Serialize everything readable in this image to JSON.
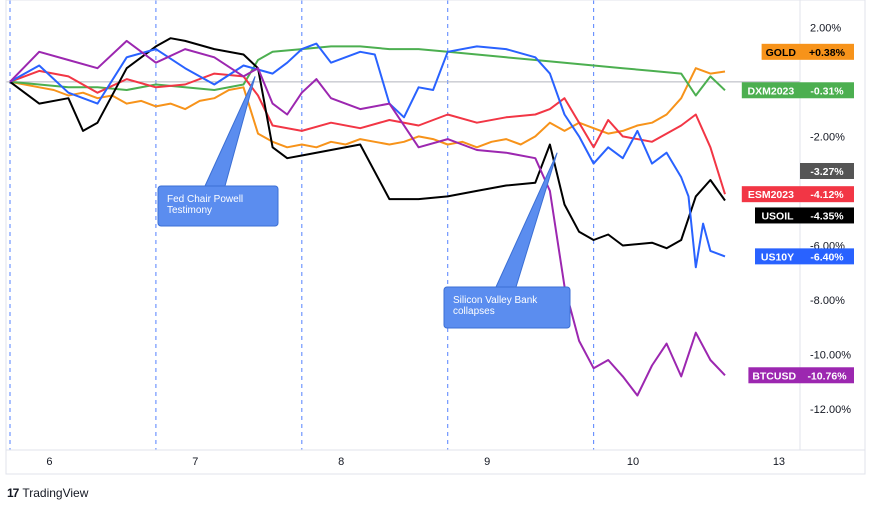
{
  "chart_data": {
    "type": "line",
    "title": "",
    "xlabel": "",
    "ylabel": "",
    "x_ticks": [
      "6",
      "7",
      "8",
      "9",
      "10",
      "13"
    ],
    "y_ticks": [
      "2.00%",
      "-2.00%",
      "-6.00%",
      "-8.00%",
      "-10.00%",
      "-12.00%"
    ],
    "ylim": [
      -13.5,
      3
    ],
    "xlim": [
      0,
      5.38
    ],
    "grid": "vertical dashed session separators",
    "series": [
      {
        "name": "GOLD",
        "label": "+0.38%",
        "color": "#f7931a",
        "x": [
          0,
          0.1,
          0.2,
          0.3,
          0.4,
          0.5,
          0.6,
          0.7,
          0.8,
          0.9,
          1.0,
          1.1,
          1.2,
          1.3,
          1.4,
          1.5,
          1.6,
          1.7,
          1.8,
          1.9,
          2.0,
          2.1,
          2.2,
          2.3,
          2.4,
          2.5,
          2.6,
          2.7,
          2.8,
          2.9,
          3.0,
          3.1,
          3.2,
          3.3,
          3.4,
          3.5,
          3.6,
          3.7,
          3.8,
          3.9,
          4.0,
          4.1,
          4.2,
          4.3,
          4.4,
          4.5,
          4.6,
          4.7,
          4.8,
          4.9
        ],
        "y": [
          0,
          -0.1,
          -0.2,
          -0.3,
          -0.5,
          -0.4,
          -0.6,
          -0.5,
          -0.8,
          -0.7,
          -0.9,
          -0.8,
          -1.0,
          -0.7,
          -0.6,
          -0.3,
          -0.2,
          -1.9,
          -2.2,
          -2.4,
          -2.3,
          -2.4,
          -2.2,
          -2.3,
          -2.1,
          -2.2,
          -2.3,
          -2.2,
          -2.0,
          -2.1,
          -2.3,
          -2.2,
          -2.4,
          -2.2,
          -2.1,
          -2.3,
          -2.0,
          -1.5,
          -1.8,
          -1.5,
          -1.7,
          -1.9,
          -1.8,
          -1.6,
          -1.5,
          -1.2,
          -0.6,
          0.5,
          0.3,
          0.38
        ]
      },
      {
        "name": "DXM2023",
        "label": "-0.31%",
        "color": "#4caf50",
        "x": [
          0,
          0.2,
          0.4,
          0.6,
          0.8,
          1.0,
          1.2,
          1.4,
          1.6,
          1.7,
          1.8,
          2.0,
          2.2,
          2.4,
          2.6,
          2.8,
          3.0,
          3.2,
          3.4,
          3.6,
          3.8,
          4.0,
          4.2,
          4.4,
          4.6,
          4.7,
          4.8,
          4.9
        ],
        "y": [
          0,
          -0.1,
          -0.2,
          -0.2,
          -0.3,
          -0.1,
          -0.2,
          -0.3,
          -0.1,
          0.8,
          1.1,
          1.2,
          1.3,
          1.3,
          1.2,
          1.2,
          1.1,
          1.0,
          0.9,
          0.8,
          0.7,
          0.6,
          0.5,
          0.4,
          0.3,
          -0.5,
          0.2,
          -0.31
        ]
      },
      {
        "name": "ESM2023",
        "label": "-4.12%",
        "color": "#f23645",
        "x": [
          0,
          0.2,
          0.4,
          0.6,
          0.8,
          1.0,
          1.2,
          1.4,
          1.6,
          1.7,
          1.8,
          2.0,
          2.2,
          2.4,
          2.6,
          2.8,
          3.0,
          3.2,
          3.4,
          3.6,
          3.7,
          3.8,
          3.9,
          4.0,
          4.1,
          4.2,
          4.4,
          4.6,
          4.7,
          4.8,
          4.9
        ],
        "y": [
          0,
          0.4,
          0.2,
          -0.4,
          0.1,
          -0.2,
          -0.1,
          0.3,
          0.2,
          -0.5,
          -1.6,
          -1.8,
          -1.5,
          -1.7,
          -1.4,
          -1.6,
          -1.2,
          -1.5,
          -1.3,
          -1.2,
          -1.0,
          -0.6,
          -1.5,
          -2.4,
          -1.4,
          -2.0,
          -2.2,
          -1.6,
          -1.2,
          -2.4,
          -4.12
        ]
      },
      {
        "name": "USOIL",
        "label": "-4.35%",
        "color": "#000000",
        "x": [
          0,
          0.2,
          0.4,
          0.5,
          0.6,
          0.8,
          1.0,
          1.1,
          1.2,
          1.4,
          1.6,
          1.7,
          1.8,
          1.9,
          2.0,
          2.2,
          2.4,
          2.6,
          2.8,
          3.0,
          3.2,
          3.4,
          3.6,
          3.7,
          3.8,
          3.9,
          4.0,
          4.1,
          4.2,
          4.4,
          4.5,
          4.6,
          4.7,
          4.8,
          4.9
        ],
        "y": [
          0,
          -0.8,
          -0.6,
          -1.8,
          -1.5,
          0.5,
          1.3,
          1.6,
          1.5,
          1.2,
          1.0,
          0.5,
          -2.4,
          -2.8,
          -2.7,
          -2.5,
          -2.3,
          -4.3,
          -4.3,
          -4.2,
          -4.0,
          -3.8,
          -3.7,
          -2.3,
          -4.5,
          -5.5,
          -5.8,
          -5.6,
          -6.0,
          -5.9,
          -6.1,
          -5.8,
          -4.2,
          -3.6,
          -4.35
        ]
      },
      {
        "name": "US10Y",
        "label": "-6.40%",
        "color": "#2962ff",
        "x": [
          0,
          0.2,
          0.4,
          0.6,
          0.8,
          1.0,
          1.2,
          1.4,
          1.6,
          1.8,
          1.9,
          2.0,
          2.1,
          2.2,
          2.4,
          2.5,
          2.6,
          2.7,
          2.8,
          2.9,
          3.0,
          3.2,
          3.4,
          3.6,
          3.7,
          3.8,
          3.9,
          4.0,
          4.1,
          4.2,
          4.3,
          4.4,
          4.5,
          4.6,
          4.65,
          4.7,
          4.75,
          4.8,
          4.9
        ],
        "y": [
          0,
          0.6,
          -0.4,
          -0.8,
          0.9,
          1.2,
          0.5,
          -0.1,
          0.6,
          0.3,
          0.7,
          1.2,
          1.4,
          0.7,
          1.1,
          1.0,
          -0.8,
          -1.3,
          -0.2,
          -0.3,
          1.1,
          1.3,
          1.2,
          0.9,
          0.3,
          -1.2,
          -2.0,
          -3.0,
          -2.4,
          -2.8,
          -1.8,
          -3.0,
          -2.6,
          -3.5,
          -4.2,
          -6.8,
          -5.2,
          -6.2,
          -6.4
        ]
      },
      {
        "name": "BTCUSD",
        "label": "-10.76%",
        "color": "#9c27b0",
        "x": [
          0,
          0.2,
          0.4,
          0.6,
          0.8,
          1.0,
          1.2,
          1.4,
          1.6,
          1.7,
          1.8,
          1.9,
          2.0,
          2.1,
          2.2,
          2.4,
          2.6,
          2.8,
          3.0,
          3.2,
          3.4,
          3.6,
          3.7,
          3.8,
          3.9,
          4.0,
          4.1,
          4.2,
          4.3,
          4.4,
          4.5,
          4.6,
          4.7,
          4.8,
          4.9
        ],
        "y": [
          0,
          1.1,
          0.8,
          0.5,
          1.5,
          0.7,
          1.2,
          0.9,
          0.2,
          0.5,
          -0.8,
          -1.2,
          -0.4,
          0.1,
          -0.6,
          -1.0,
          -0.8,
          -2.4,
          -2.1,
          -2.5,
          -2.6,
          -2.8,
          -4.0,
          -7.5,
          -9.5,
          -10.5,
          -10.2,
          -10.8,
          -11.5,
          -10.4,
          -9.6,
          -10.8,
          -9.2,
          -10.2,
          -10.76
        ]
      }
    ],
    "last_value_badges": [
      {
        "label": "-3.27%",
        "value": -3.27,
        "color": "#555555"
      }
    ],
    "annotations": [
      {
        "text": "Fed Chair Powell Testimony",
        "anchor_x": 1.68,
        "anchor_y": 0.2
      },
      {
        "text": "Silicon Valley Bank collapses",
        "anchor_x": 3.75,
        "anchor_y": -2.6
      }
    ],
    "session_separators": [
      0.0,
      1.0,
      2.0,
      3.0,
      4.0
    ]
  },
  "branding": {
    "name": "TradingView",
    "logo_text": "17"
  }
}
